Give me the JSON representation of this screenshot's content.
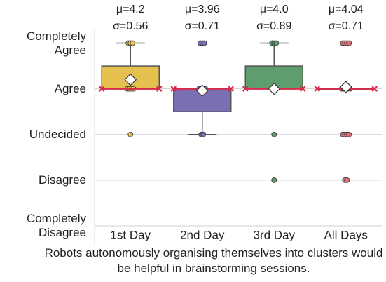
{
  "chart_data": {
    "type": "box",
    "categories": [
      "1st Day",
      "2nd Day",
      "3rd Day",
      "All Days"
    ],
    "colors": [
      "#e6c04e",
      "#7a6fb2",
      "#5e9e6e",
      "#d9707c"
    ],
    "boxes": [
      {
        "whislo": 4,
        "q1": 4,
        "median": 4,
        "q3": 4.5,
        "whishi": 5
      },
      {
        "whislo": 3,
        "q1": 3.5,
        "median": 4,
        "q3": 4,
        "whishi": 4
      },
      {
        "whislo": 4,
        "q1": 4,
        "median": 4,
        "q3": 4.5,
        "whishi": 5
      },
      {
        "whislo": 4,
        "q1": 4,
        "median": 4,
        "q3": 4,
        "whishi": 4
      }
    ],
    "points": [
      [
        5,
        5,
        5,
        4,
        4,
        4,
        4,
        3
      ],
      [
        5,
        5,
        5,
        4,
        4,
        4,
        4,
        3,
        3
      ],
      [
        5,
        5,
        5,
        4,
        4,
        4,
        3,
        2
      ],
      [
        5,
        5,
        5,
        5,
        4,
        4,
        4,
        4,
        4,
        3,
        3,
        3,
        3,
        2,
        2
      ]
    ],
    "means": [
      4.2,
      3.96,
      4.0,
      4.04
    ],
    "mean_labels": [
      "μ=4.2",
      "μ=3.96",
      "μ=4.0",
      "μ=4.04"
    ],
    "sd_labels": [
      "σ=0.56",
      "σ=0.71",
      "σ=0.89",
      "σ=0.71"
    ],
    "ylim": [
      1,
      5.3
    ],
    "yticks": [
      {
        "value": 1,
        "label": "Completely Disagree"
      },
      {
        "value": 2,
        "label": "Disagree"
      },
      {
        "value": 3,
        "label": "Undecided"
      },
      {
        "value": 4,
        "label": "Agree"
      },
      {
        "value": 5,
        "label": "Completely Agree"
      }
    ],
    "grid": true,
    "caption": "Robots autonomously organising themselves into clusters would be helpful in brainstorming sessions."
  }
}
